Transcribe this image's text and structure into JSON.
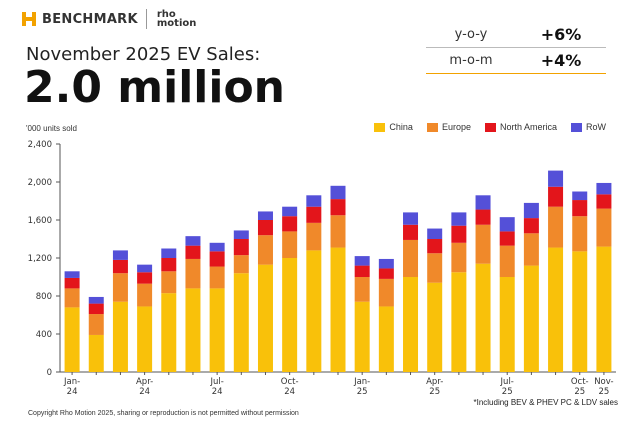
{
  "brand": {
    "benchmark": "BENCHMARK",
    "rho_line1": "rho",
    "rho_line2": "motion",
    "accent": "#f2a200"
  },
  "headline": {
    "title": "November 2025 EV Sales:",
    "value": "2.0 million"
  },
  "stats": [
    {
      "label": "y-o-y",
      "value": "+6%"
    },
    {
      "label": "m-o-m",
      "value": "+4%"
    }
  ],
  "footnote": "*Including BEV & PHEV PC & LDV sales",
  "copyright": "Copyright Rho Motion 2025, sharing or reproduction is not permitted without permission",
  "chart_data": {
    "type": "bar",
    "stacked": true,
    "ylabel": "'000 units sold",
    "ylim": [
      0,
      2400
    ],
    "yticks": [
      0,
      400,
      800,
      1200,
      1600,
      2000,
      2400
    ],
    "yticklabels": [
      "0",
      "400",
      "800",
      "1,200",
      "1,600",
      "2,000",
      "2,400"
    ],
    "categories": [
      "Jan-24",
      "Feb-24",
      "Mar-24",
      "Apr-24",
      "May-24",
      "Jun-24",
      "Jul-24",
      "Aug-24",
      "Sep-24",
      "Oct-24",
      "Nov-24",
      "Dec-24",
      "Jan-25",
      "Feb-25",
      "Mar-25",
      "Apr-25",
      "May-25",
      "Jun-25",
      "Jul-25",
      "Aug-25",
      "Sep-25",
      "Oct-25",
      "Nov-25"
    ],
    "xticklabels": [
      {
        "index": 0,
        "line1": "Jan-",
        "line2": "24"
      },
      {
        "index": 3,
        "line1": "Apr-",
        "line2": "24"
      },
      {
        "index": 6,
        "line1": "Jul-",
        "line2": "24"
      },
      {
        "index": 9,
        "line1": "Oct-",
        "line2": "24"
      },
      {
        "index": 12,
        "line1": "Jan-",
        "line2": "25"
      },
      {
        "index": 15,
        "line1": "Apr-",
        "line2": "25"
      },
      {
        "index": 18,
        "line1": "Jul-",
        "line2": "25"
      },
      {
        "index": 21,
        "line1": "Oct-",
        "line2": "25"
      },
      {
        "index": 22,
        "line1": "Nov-",
        "line2": "25"
      }
    ],
    "legend_position": "top-right",
    "series": [
      {
        "name": "China",
        "color": "#f9c10a",
        "values": [
          680,
          390,
          740,
          690,
          830,
          880,
          880,
          1040,
          1130,
          1200,
          1280,
          1310,
          740,
          690,
          1000,
          940,
          1050,
          1140,
          1000,
          1120,
          1310,
          1270,
          1320
        ]
      },
      {
        "name": "Europe",
        "color": "#f0892a",
        "values": [
          200,
          220,
          300,
          240,
          230,
          310,
          230,
          190,
          310,
          280,
          290,
          340,
          260,
          290,
          390,
          310,
          310,
          410,
          330,
          340,
          430,
          370,
          400
        ]
      },
      {
        "name": "North America",
        "color": "#e3151b",
        "values": [
          110,
          110,
          140,
          120,
          140,
          140,
          160,
          170,
          160,
          160,
          170,
          170,
          120,
          110,
          160,
          150,
          180,
          160,
          150,
          160,
          210,
          170,
          150
        ]
      },
      {
        "name": "RoW",
        "color": "#5450d8",
        "values": [
          70,
          70,
          100,
          80,
          100,
          100,
          90,
          90,
          90,
          100,
          120,
          140,
          100,
          100,
          130,
          110,
          140,
          150,
          150,
          160,
          170,
          90,
          120
        ]
      }
    ]
  }
}
